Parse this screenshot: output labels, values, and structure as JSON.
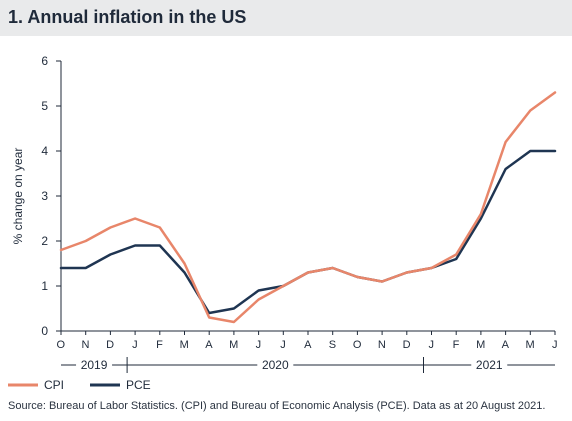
{
  "chart_data": {
    "type": "line",
    "title": "1. Annual inflation in the US",
    "ylabel": "% change on year",
    "ylim": [
      0,
      6
    ],
    "yticks": [
      0,
      1,
      2,
      3,
      4,
      5,
      6
    ],
    "x_month_labels": [
      "O",
      "N",
      "D",
      "J",
      "F",
      "M",
      "A",
      "M",
      "J",
      "J",
      "A",
      "S",
      "O",
      "N",
      "D",
      "J",
      "F",
      "M",
      "A",
      "M",
      "J"
    ],
    "years": [
      {
        "label": "2019",
        "start": 0,
        "end": 3
      },
      {
        "label": "2020",
        "start": 3,
        "end": 15
      },
      {
        "label": "2021",
        "start": 15,
        "end": 20
      }
    ],
    "x": [
      "2019-10",
      "2019-11",
      "2019-12",
      "2020-01",
      "2020-02",
      "2020-03",
      "2020-04",
      "2020-05",
      "2020-06",
      "2020-07",
      "2020-08",
      "2020-09",
      "2020-10",
      "2020-11",
      "2020-12",
      "2021-01",
      "2021-02",
      "2021-03",
      "2021-04",
      "2021-05",
      "2021-06"
    ],
    "series": [
      {
        "name": "CPI",
        "color": "#e8866a",
        "values": [
          1.8,
          2.0,
          2.3,
          2.5,
          2.3,
          1.5,
          0.3,
          0.2,
          0.7,
          1.0,
          1.3,
          1.4,
          1.2,
          1.1,
          1.3,
          1.4,
          1.7,
          2.6,
          4.2,
          4.9,
          5.3
        ]
      },
      {
        "name": "PCE",
        "color": "#1f3552",
        "values": [
          1.4,
          1.4,
          1.7,
          1.9,
          1.9,
          1.3,
          0.4,
          0.5,
          0.9,
          1.0,
          1.3,
          1.4,
          1.2,
          1.1,
          1.3,
          1.4,
          1.6,
          2.5,
          3.6,
          4.0,
          4.0
        ]
      }
    ],
    "grid": false,
    "legend_position": "bottom-left"
  },
  "page": {
    "title": "1. Annual inflation in the US",
    "source": "Source: Bureau of Labor Statistics. (CPI) and Bureau of Economic Analysis (PCE). Data as at 20 August 2021."
  }
}
